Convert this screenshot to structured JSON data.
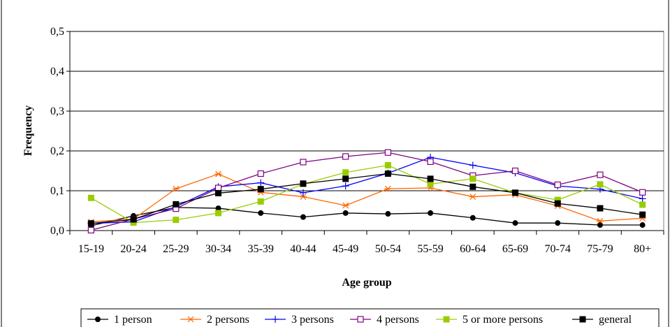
{
  "chart_data": {
    "type": "line",
    "xlabel": "Age group",
    "ylabel": "Frequency",
    "ylim": [
      0,
      0.5
    ],
    "yticks": [
      "0,0",
      "0,1",
      "0,2",
      "0,3",
      "0,4",
      "0,5"
    ],
    "ytick_values": [
      0,
      0.1,
      0.2,
      0.3,
      0.4,
      0.5
    ],
    "grid": "horizontal",
    "legend_position": "bottom",
    "categories": [
      "15-19",
      "20-24",
      "25-29",
      "30-34",
      "35-39",
      "40-44",
      "45-49",
      "50-54",
      "55-59",
      "60-64",
      "65-69",
      "70-74",
      "75-79",
      "80+"
    ],
    "series": [
      {
        "name": "1 person",
        "color": "#000000",
        "marker": "circle",
        "values": [
          0.012,
          0.037,
          0.058,
          0.056,
          0.044,
          0.034,
          0.044,
          0.042,
          0.044,
          0.032,
          0.019,
          0.019,
          0.014,
          0.014
        ]
      },
      {
        "name": "2 persons",
        "color": "#ff6600",
        "marker": "star",
        "values": [
          0.022,
          0.029,
          0.105,
          0.142,
          0.096,
          0.085,
          0.063,
          0.105,
          0.107,
          0.085,
          0.09,
          0.062,
          0.024,
          0.031
        ]
      },
      {
        "name": "3 persons",
        "color": "#0000ff",
        "marker": "plus",
        "values": [
          0.018,
          0.022,
          0.06,
          0.11,
          0.12,
          0.095,
          0.112,
          0.144,
          0.184,
          0.164,
          0.145,
          0.112,
          0.104,
          0.08
        ]
      },
      {
        "name": "4 persons",
        "color": "#800080",
        "marker": "square-open",
        "values": [
          0.001,
          0.029,
          0.055,
          0.107,
          0.143,
          0.172,
          0.186,
          0.196,
          0.173,
          0.138,
          0.15,
          0.115,
          0.14,
          0.096
        ]
      },
      {
        "name": "5 or more persons",
        "color": "#99cc00",
        "marker": "square",
        "values": [
          0.082,
          0.02,
          0.027,
          0.044,
          0.073,
          0.117,
          0.146,
          0.164,
          0.117,
          0.13,
          0.095,
          0.077,
          0.116,
          0.065
        ]
      },
      {
        "name": "general",
        "color": "#000000",
        "marker": "square",
        "values": [
          0.018,
          0.028,
          0.066,
          0.094,
          0.104,
          0.118,
          0.13,
          0.143,
          0.13,
          0.11,
          0.095,
          0.068,
          0.056,
          0.04
        ]
      }
    ]
  }
}
